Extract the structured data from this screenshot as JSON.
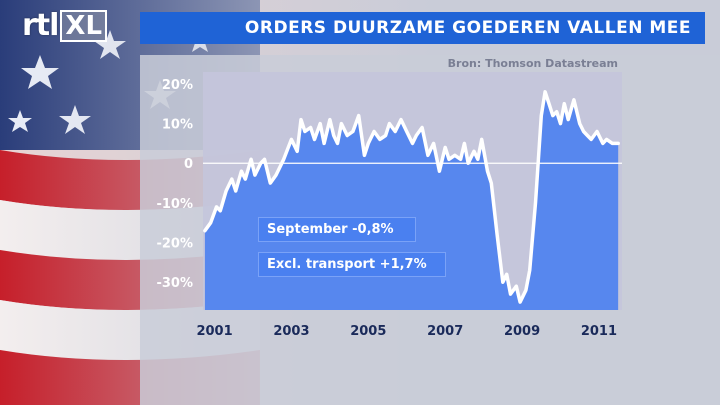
{
  "header": {
    "logo_text": "rtl",
    "logo_badge": "XL",
    "title": "ORDERS DUURZAME GOEDEREN VALLEN MEE",
    "source": "Bron: Thomson Datastream"
  },
  "annotations": {
    "september": "September -0,8%",
    "excl_transport": "Excl. transport +1,7%"
  },
  "colors": {
    "title_bar": "#1f63d6",
    "area_fill": "#4a80f0",
    "line": "#ffffff",
    "plot_bg": "#c4c5dc"
  },
  "chart_data": {
    "type": "area",
    "title": "ORDERS DUURZAME GOEDEREN VALLEN MEE",
    "xlabel": "",
    "ylabel": "",
    "xlim": [
      2000.7,
      2011.6
    ],
    "ylim": [
      -37,
      23
    ],
    "yticks": [
      20,
      10,
      0,
      -10,
      -20,
      -30
    ],
    "ytick_labels": [
      "20%",
      "10%",
      "0",
      "-10%",
      "-20%",
      "-30%"
    ],
    "xticks": [
      2001,
      2003,
      2005,
      2007,
      2009,
      2011
    ],
    "xtick_labels": [
      "2001",
      "2003",
      "2005",
      "2007",
      "2009",
      "2011"
    ],
    "grid": false,
    "series": [
      {
        "x": [
          2000.75,
          2000.9,
          2001.05,
          2001.15,
          2001.3,
          2001.45,
          2001.55,
          2001.7,
          2001.8,
          2001.95,
          2002.05,
          2002.2,
          2002.3,
          2002.45,
          2002.6,
          2002.8,
          2003.0,
          2003.15,
          2003.25,
          2003.35,
          2003.5,
          2003.6,
          2003.75,
          2003.85,
          2004.0,
          2004.1,
          2004.2,
          2004.3,
          2004.45,
          2004.6,
          2004.75,
          2004.9,
          2005.0,
          2005.15,
          2005.3,
          2005.45,
          2005.55,
          2005.7,
          2005.85,
          2006.0,
          2006.15,
          2006.25,
          2006.4,
          2006.55,
          2006.7,
          2006.85,
          2007.0,
          2007.1,
          2007.25,
          2007.4,
          2007.5,
          2007.6,
          2007.75,
          2007.85,
          2007.95,
          2008.1,
          2008.2,
          2008.35,
          2008.5,
          2008.6,
          2008.7,
          2008.85,
          2008.95,
          2009.1,
          2009.2,
          2009.35,
          2009.5,
          2009.6,
          2009.7,
          2009.8,
          2009.9,
          2010.0,
          2010.1,
          2010.2,
          2010.35,
          2010.5,
          2010.6,
          2010.7,
          2010.8,
          2010.95,
          2011.1,
          2011.2,
          2011.35,
          2011.5
        ],
        "values": [
          -17,
          -15,
          -11,
          -12,
          -7,
          -4,
          -7,
          -2,
          -4,
          1,
          -3,
          0,
          1,
          -5,
          -3,
          1,
          6,
          3,
          11,
          8,
          9,
          6,
          10,
          5,
          11,
          7,
          5,
          10,
          7,
          8,
          12,
          2,
          5,
          8,
          6,
          7,
          10,
          8,
          11,
          8,
          5,
          7,
          9,
          2,
          5,
          -2,
          4,
          1,
          2,
          1,
          5,
          0,
          3,
          1,
          6,
          -2,
          -5,
          -18,
          -30,
          -28,
          -33,
          -31,
          -35,
          -32,
          -27,
          -10,
          12,
          18,
          15,
          12,
          13,
          10,
          15,
          11,
          16,
          10,
          8,
          7,
          6,
          8,
          5,
          6,
          5,
          5
        ]
      }
    ]
  }
}
